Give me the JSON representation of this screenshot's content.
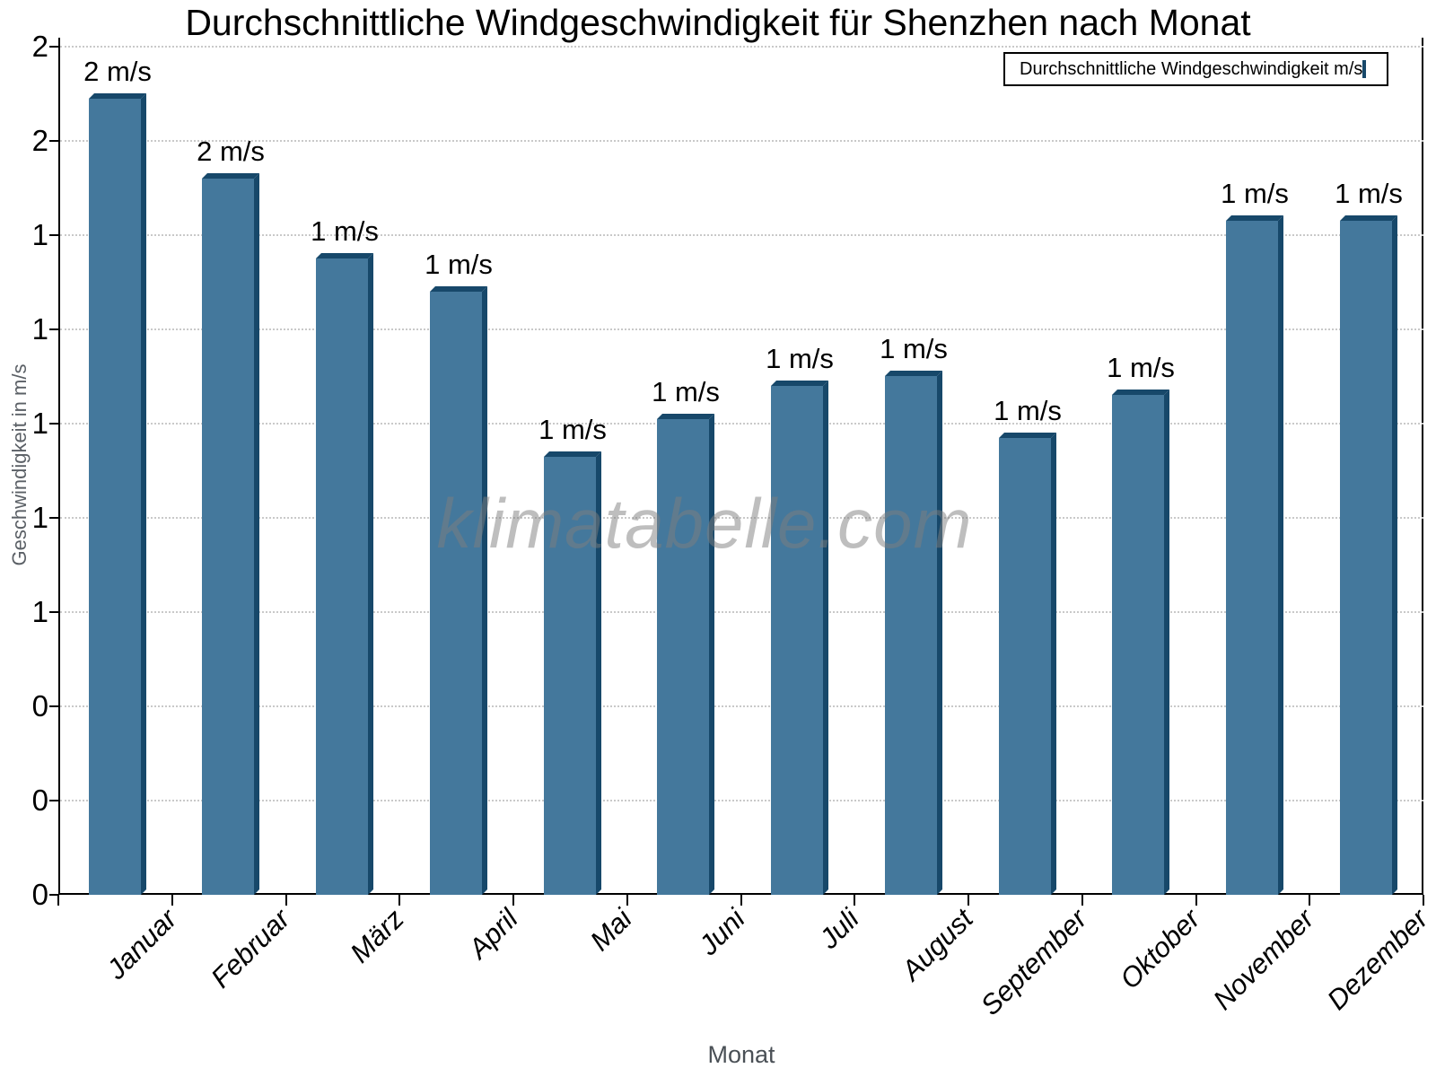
{
  "title": "Durchschnittliche Windgeschwindigkeit für Shenzhen nach Monat",
  "watermark": "klimatabelle.com",
  "legend": {
    "label": "Durchschnittliche Windgeschwindigkeit m/s",
    "position": "top-right"
  },
  "axes": {
    "x_title": "Monat",
    "y_title": "Geschwindigkeit in m/s",
    "y_tick_labels_bottom_to_top": [
      "0",
      "0",
      "0",
      "1",
      "1",
      "1",
      "1",
      "1",
      "2",
      "2"
    ]
  },
  "colors": {
    "bar_face": "#44789C",
    "bar_shadow": "#17486A",
    "gridline": "#c9c9c9",
    "axis": "#000000",
    "axis_title_gray": "#5b6066",
    "watermark_gray": "rgba(125,125,125,0.5)"
  },
  "chart_data": {
    "type": "bar",
    "title": "Durchschnittliche Windgeschwindigkeit für Shenzhen nach Monat",
    "xlabel": "Monat",
    "ylabel": "Geschwindigkeit in m/s",
    "categories": [
      "Januar",
      "Februar",
      "März",
      "April",
      "Mai",
      "Juni",
      "Juli",
      "August",
      "September",
      "Oktober",
      "November",
      "Dezember"
    ],
    "values": [
      1.69,
      1.52,
      1.35,
      1.28,
      0.93,
      1.01,
      1.08,
      1.1,
      0.97,
      1.06,
      1.43,
      1.43
    ],
    "bar_labels": [
      "2 m/s",
      "2 m/s",
      "1 m/s",
      "1 m/s",
      "1 m/s",
      "1 m/s",
      "1 m/s",
      "1 m/s",
      "1 m/s",
      "1 m/s",
      "1 m/s",
      "1 m/s"
    ],
    "unit": "m/s",
    "ylim": [
      0,
      1.82
    ],
    "y_tick_step": 0.2,
    "y_tick_label_style": "rounded to integer",
    "grid": "horizontal dotted",
    "legend_position": "top-right inside plot",
    "bar_style": "pseudo-3d bevel top-right"
  }
}
